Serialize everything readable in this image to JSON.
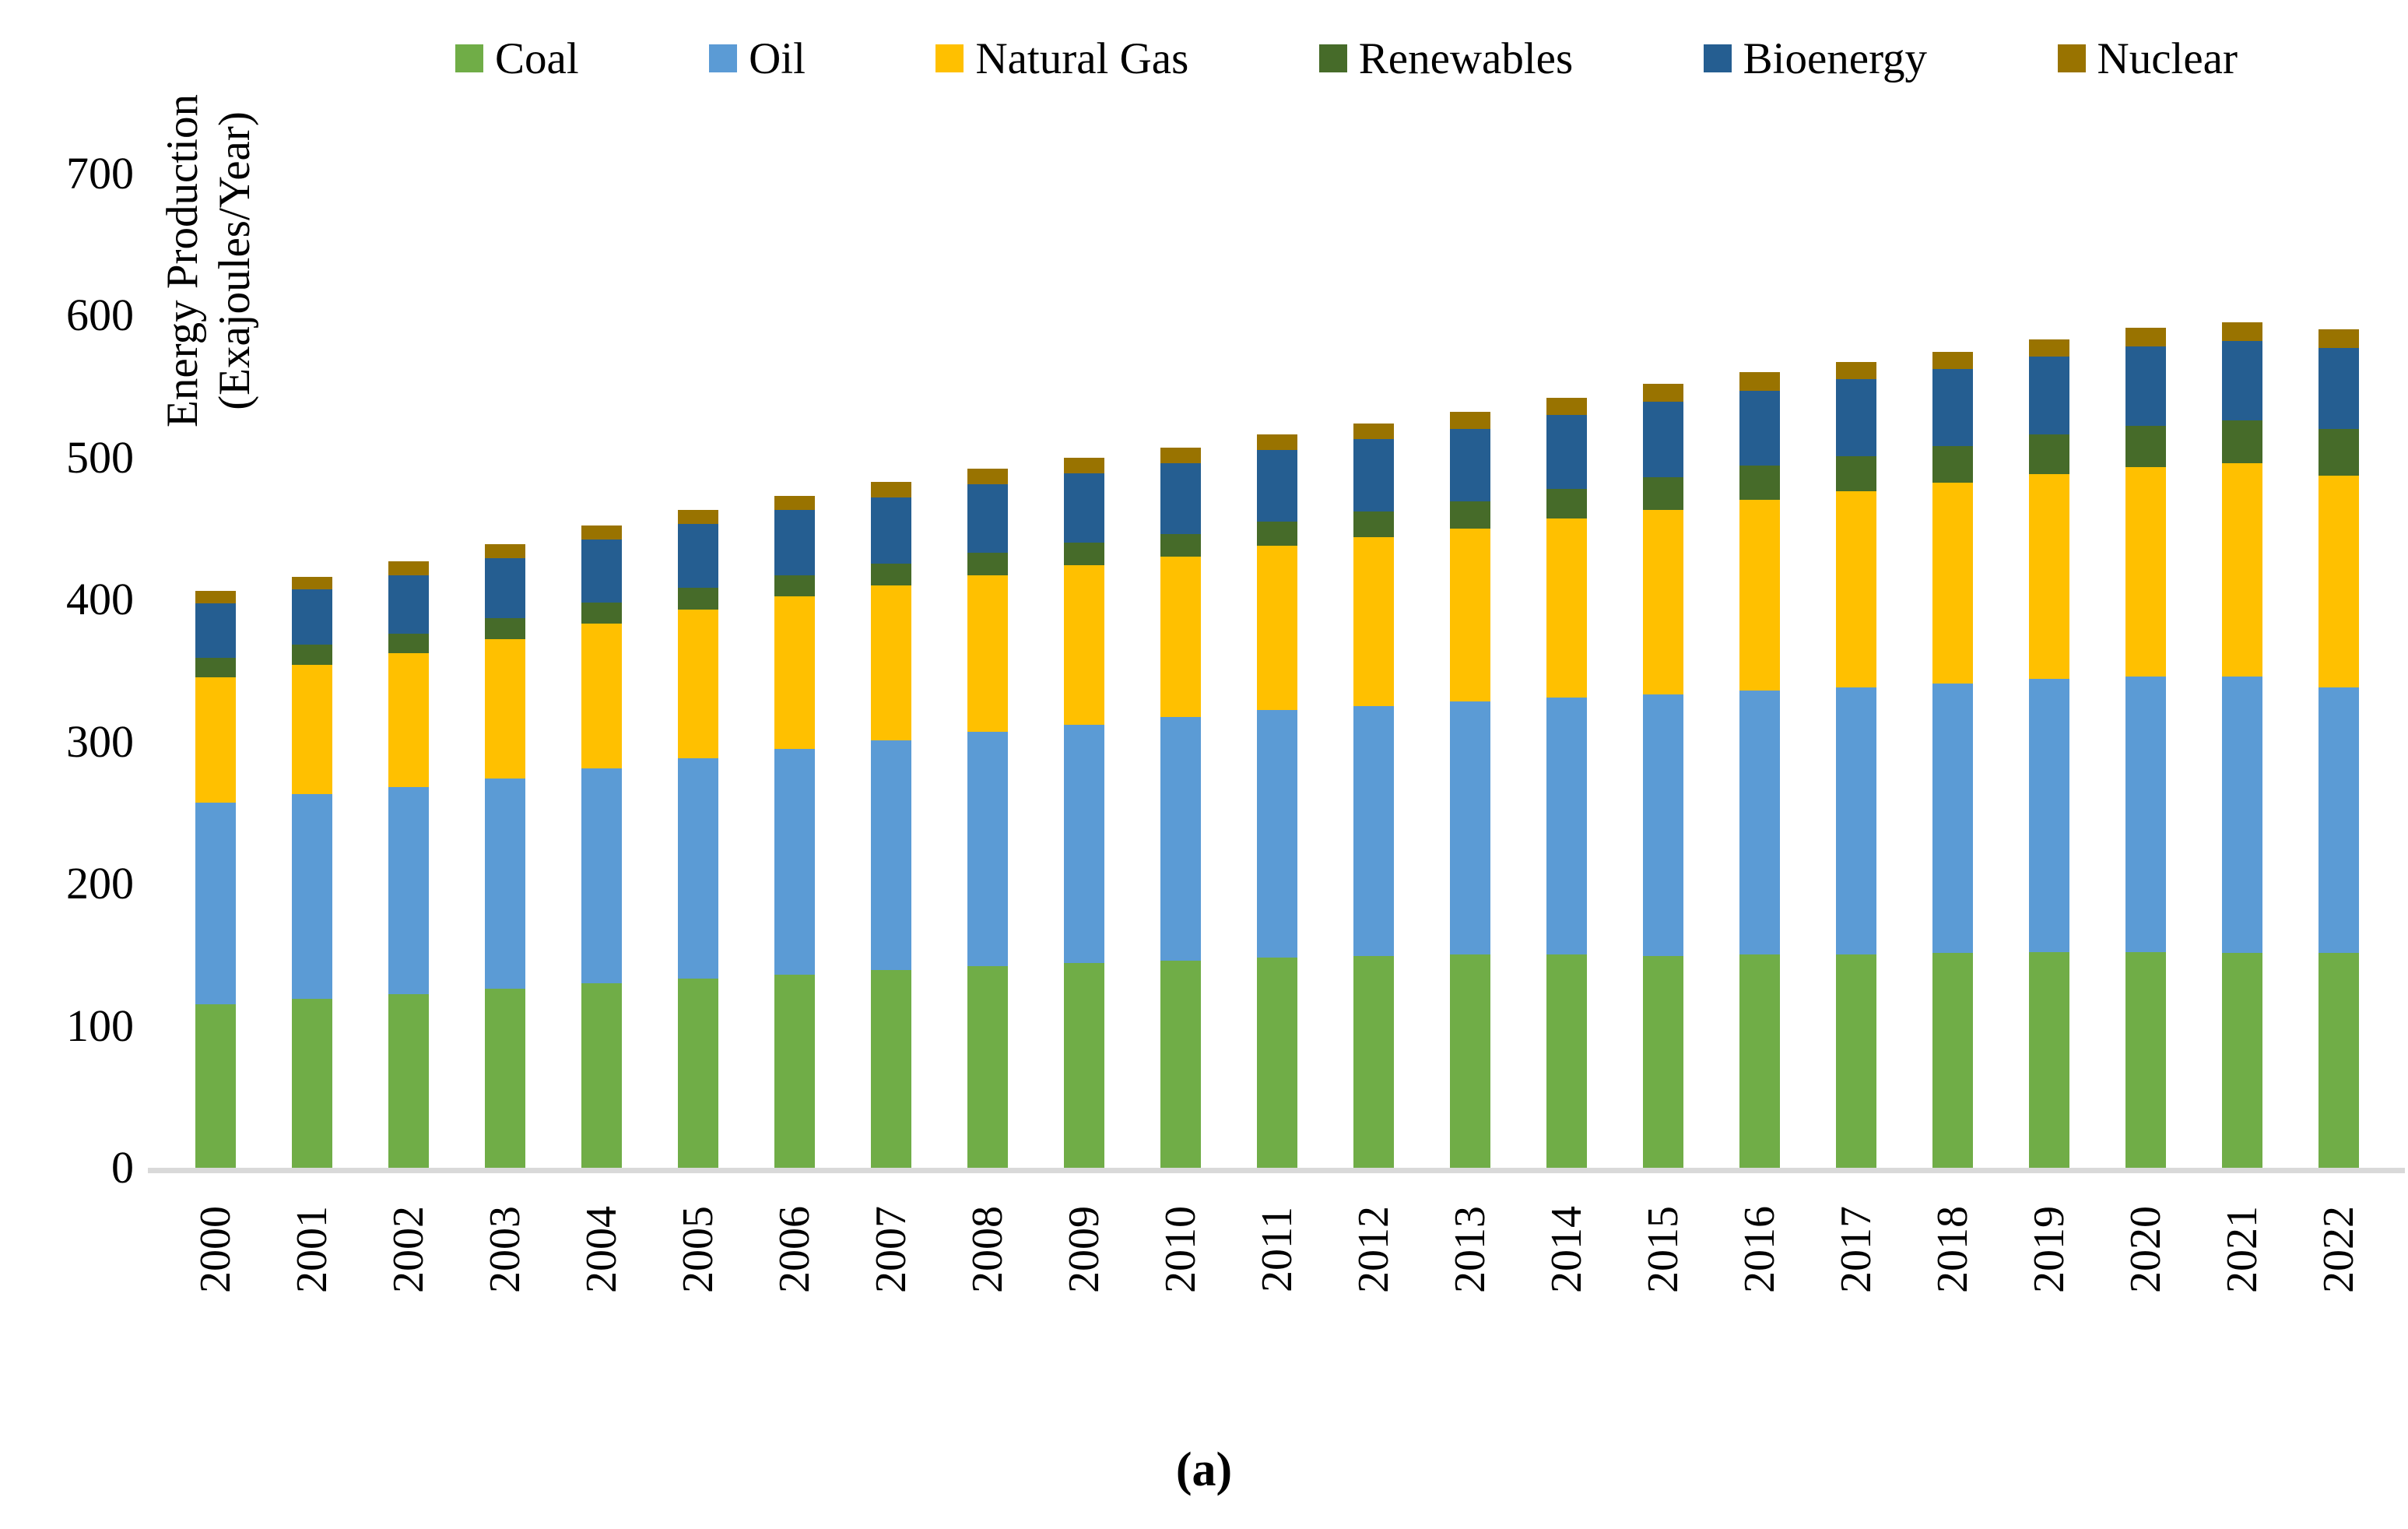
{
  "figure": {
    "y_axis_title_line1": "Energy Production",
    "y_axis_title_line2": "(Exajoules/Year)",
    "caption": "(a)"
  },
  "chart_data": {
    "type": "bar",
    "stacked": true,
    "title": "",
    "xlabel": "",
    "ylabel": "Energy Production (Exajoules/Year)",
    "ylim": [
      0,
      700
    ],
    "yticks": [
      0,
      100,
      200,
      300,
      400,
      500,
      600,
      700
    ],
    "grid": false,
    "legend_position": "top",
    "axis_line_color": "#D9D9D9",
    "categories": [
      "2000",
      "2001",
      "2002",
      "2003",
      "2004",
      "2005",
      "2006",
      "2007",
      "2008",
      "2009",
      "2010",
      "2011",
      "2012",
      "2013",
      "2014",
      "2015",
      "2016",
      "2017",
      "2018",
      "2019",
      "2020",
      "2021",
      "2022"
    ],
    "series": [
      {
        "name": "Coal",
        "color": "#70AD47",
        "values": [
          115,
          119,
          122,
          126,
          130,
          133,
          136,
          139,
          142,
          144,
          146,
          148,
          149,
          150,
          150,
          149,
          150,
          150,
          151,
          152,
          152,
          151,
          151
        ]
      },
      {
        "name": "Oil",
        "color": "#5B9BD5",
        "values": [
          142,
          144,
          146,
          148,
          151,
          155,
          159,
          162,
          165,
          168,
          171,
          174,
          176,
          178,
          181,
          184,
          186,
          188,
          190,
          192,
          194,
          195,
          187
        ]
      },
      {
        "name": "Natural Gas",
        "color": "#FFC000",
        "values": [
          88,
          91,
          94,
          98,
          102,
          105,
          107,
          109,
          110,
          112,
          113,
          116,
          119,
          122,
          126,
          130,
          134,
          138,
          141,
          144,
          147,
          150,
          149
        ]
      },
      {
        "name": "Renewables",
        "color": "#466B29",
        "values": [
          14,
          14,
          14,
          15,
          15,
          15,
          15,
          15,
          16,
          16,
          16,
          17,
          18,
          19,
          21,
          23,
          24,
          25,
          26,
          28,
          29,
          30,
          33
        ]
      },
      {
        "name": "Bioenergy",
        "color": "#255E91",
        "values": [
          38,
          39,
          41,
          42,
          44,
          45,
          46,
          47,
          48,
          49,
          50,
          50,
          51,
          51,
          52,
          53,
          53,
          54,
          54,
          55,
          56,
          56,
          57
        ]
      },
      {
        "name": "Nuclear",
        "color": "#997300",
        "values": [
          9,
          9,
          10,
          10,
          10,
          10,
          10,
          11,
          11,
          11,
          11,
          11,
          11,
          12,
          12,
          13,
          13,
          12,
          12,
          12,
          13,
          13,
          13
        ]
      }
    ],
    "totals": [
      406,
      416,
      427,
      439,
      452,
      463,
      473,
      483,
      492,
      500,
      507,
      516,
      524,
      532,
      542,
      552,
      560,
      567,
      574,
      583,
      591,
      595,
      590
    ]
  }
}
